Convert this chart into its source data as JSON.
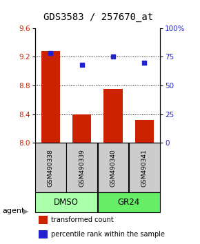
{
  "title": "GDS3583 / 257670_at",
  "samples": [
    "GSM490338",
    "GSM490339",
    "GSM490340",
    "GSM490341"
  ],
  "bar_values": [
    9.28,
    8.4,
    8.75,
    8.32
  ],
  "bar_bottom": 8.0,
  "percentile_values": [
    78,
    68,
    75,
    70
  ],
  "ylim_left": [
    8.0,
    9.6
  ],
  "ylim_right": [
    0,
    100
  ],
  "yticks_left": [
    8.0,
    8.4,
    8.8,
    9.2,
    9.6
  ],
  "yticks_right": [
    0,
    25,
    50,
    75,
    100
  ],
  "ytick_labels_right": [
    "0",
    "25",
    "50",
    "75",
    "100%"
  ],
  "bar_color": "#cc2200",
  "dot_color": "#2222cc",
  "group_colors": [
    "#aaffaa",
    "#66ee66"
  ],
  "agent_label": "agent",
  "legend_bar_label": "transformed count",
  "legend_dot_label": "percentile rank within the sample",
  "sample_box_color": "#cccccc",
  "title_fontsize": 10,
  "tick_fontsize": 7.5,
  "legend_fontsize": 7
}
